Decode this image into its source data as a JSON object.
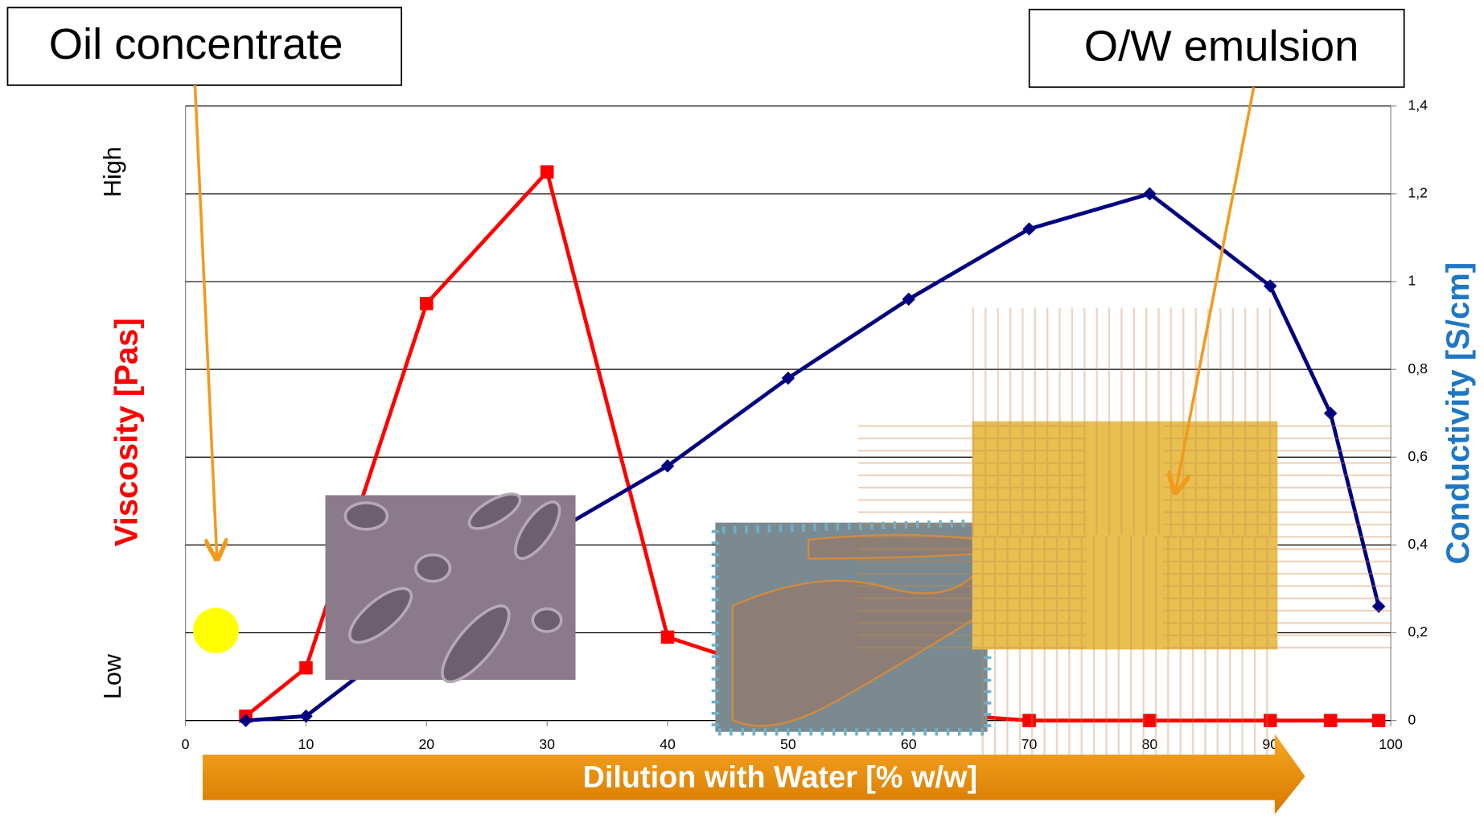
{
  "chart_data": {
    "type": "line",
    "x": [
      5,
      10,
      20,
      30,
      40,
      50,
      60,
      70,
      80,
      90,
      95,
      99
    ],
    "xlim": [
      0,
      100
    ],
    "xticks": [
      0,
      10,
      20,
      30,
      40,
      50,
      60,
      70,
      80,
      90,
      100
    ],
    "xlabel": "Dilution with Water [% w/w]",
    "ylim": [
      0,
      1.4
    ],
    "yticks": [
      {
        "value": 0.1,
        "label": "Low"
      },
      {
        "value": 1.25,
        "label": "High"
      }
    ],
    "y2lim": [
      0,
      1.4
    ],
    "y2ticks": [
      0,
      {
        "value": 0.2,
        "label": "0,2"
      },
      {
        "value": 0.4,
        "label": "0,4"
      },
      {
        "value": 0.6,
        "label": "0,6"
      },
      {
        "value": 0.8,
        "label": "0,8"
      },
      1,
      {
        "value": 1.2,
        "label": "1,2"
      },
      {
        "value": 1.4,
        "label": "1,4"
      }
    ],
    "grid": true,
    "series": [
      {
        "name": "Viscosity [Pas]",
        "color": "#ff0000",
        "marker": "square",
        "axis": "y",
        "values": [
          0.01,
          0.12,
          0.95,
          1.25,
          0.19,
          0.1,
          0.02,
          0,
          0,
          0,
          0,
          0
        ]
      },
      {
        "name": "Conductivity [S/cm]",
        "color": "#000080",
        "title_color": "#1f77c4",
        "marker": "diamond",
        "axis": "y2",
        "values": [
          0,
          0.01,
          0.22,
          0.42,
          0.58,
          0.78,
          0.96,
          1.12,
          1.2,
          0.99,
          0.7,
          0.26
        ]
      }
    ],
    "annotations": [
      "Oil concentrate",
      "O/W emulsion"
    ]
  }
}
